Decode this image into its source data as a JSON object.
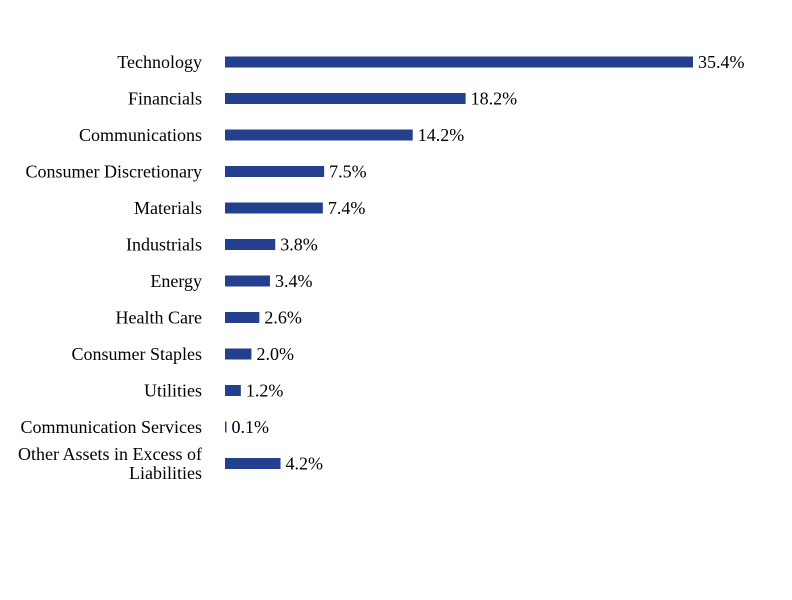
{
  "colors": {
    "bar": "#253f8f",
    "background": "#ffffff",
    "text": "#000000"
  },
  "chart_data": {
    "type": "bar",
    "orientation": "horizontal",
    "title": "",
    "xlabel": "",
    "ylabel": "",
    "grid": false,
    "legend": "none",
    "xlim": [
      0,
      35.4
    ],
    "categories": [
      "Technology",
      "Financials",
      "Communications",
      "Consumer Discretionary",
      "Materials",
      "Industrials",
      "Energy",
      "Health Care",
      "Consumer Staples",
      "Utilities",
      "Communication Services",
      "Other Assets in Excess of Liabilities"
    ],
    "values": [
      35.4,
      18.2,
      14.2,
      7.5,
      7.4,
      3.8,
      3.4,
      2.6,
      2.0,
      1.2,
      0.1,
      4.2
    ],
    "value_labels": [
      "35.4%",
      "18.2%",
      "14.2%",
      "7.5%",
      "7.4%",
      "3.8%",
      "3.4%",
      "2.6%",
      "2.0%",
      "1.2%",
      "0.1%",
      "4.2%"
    ]
  }
}
